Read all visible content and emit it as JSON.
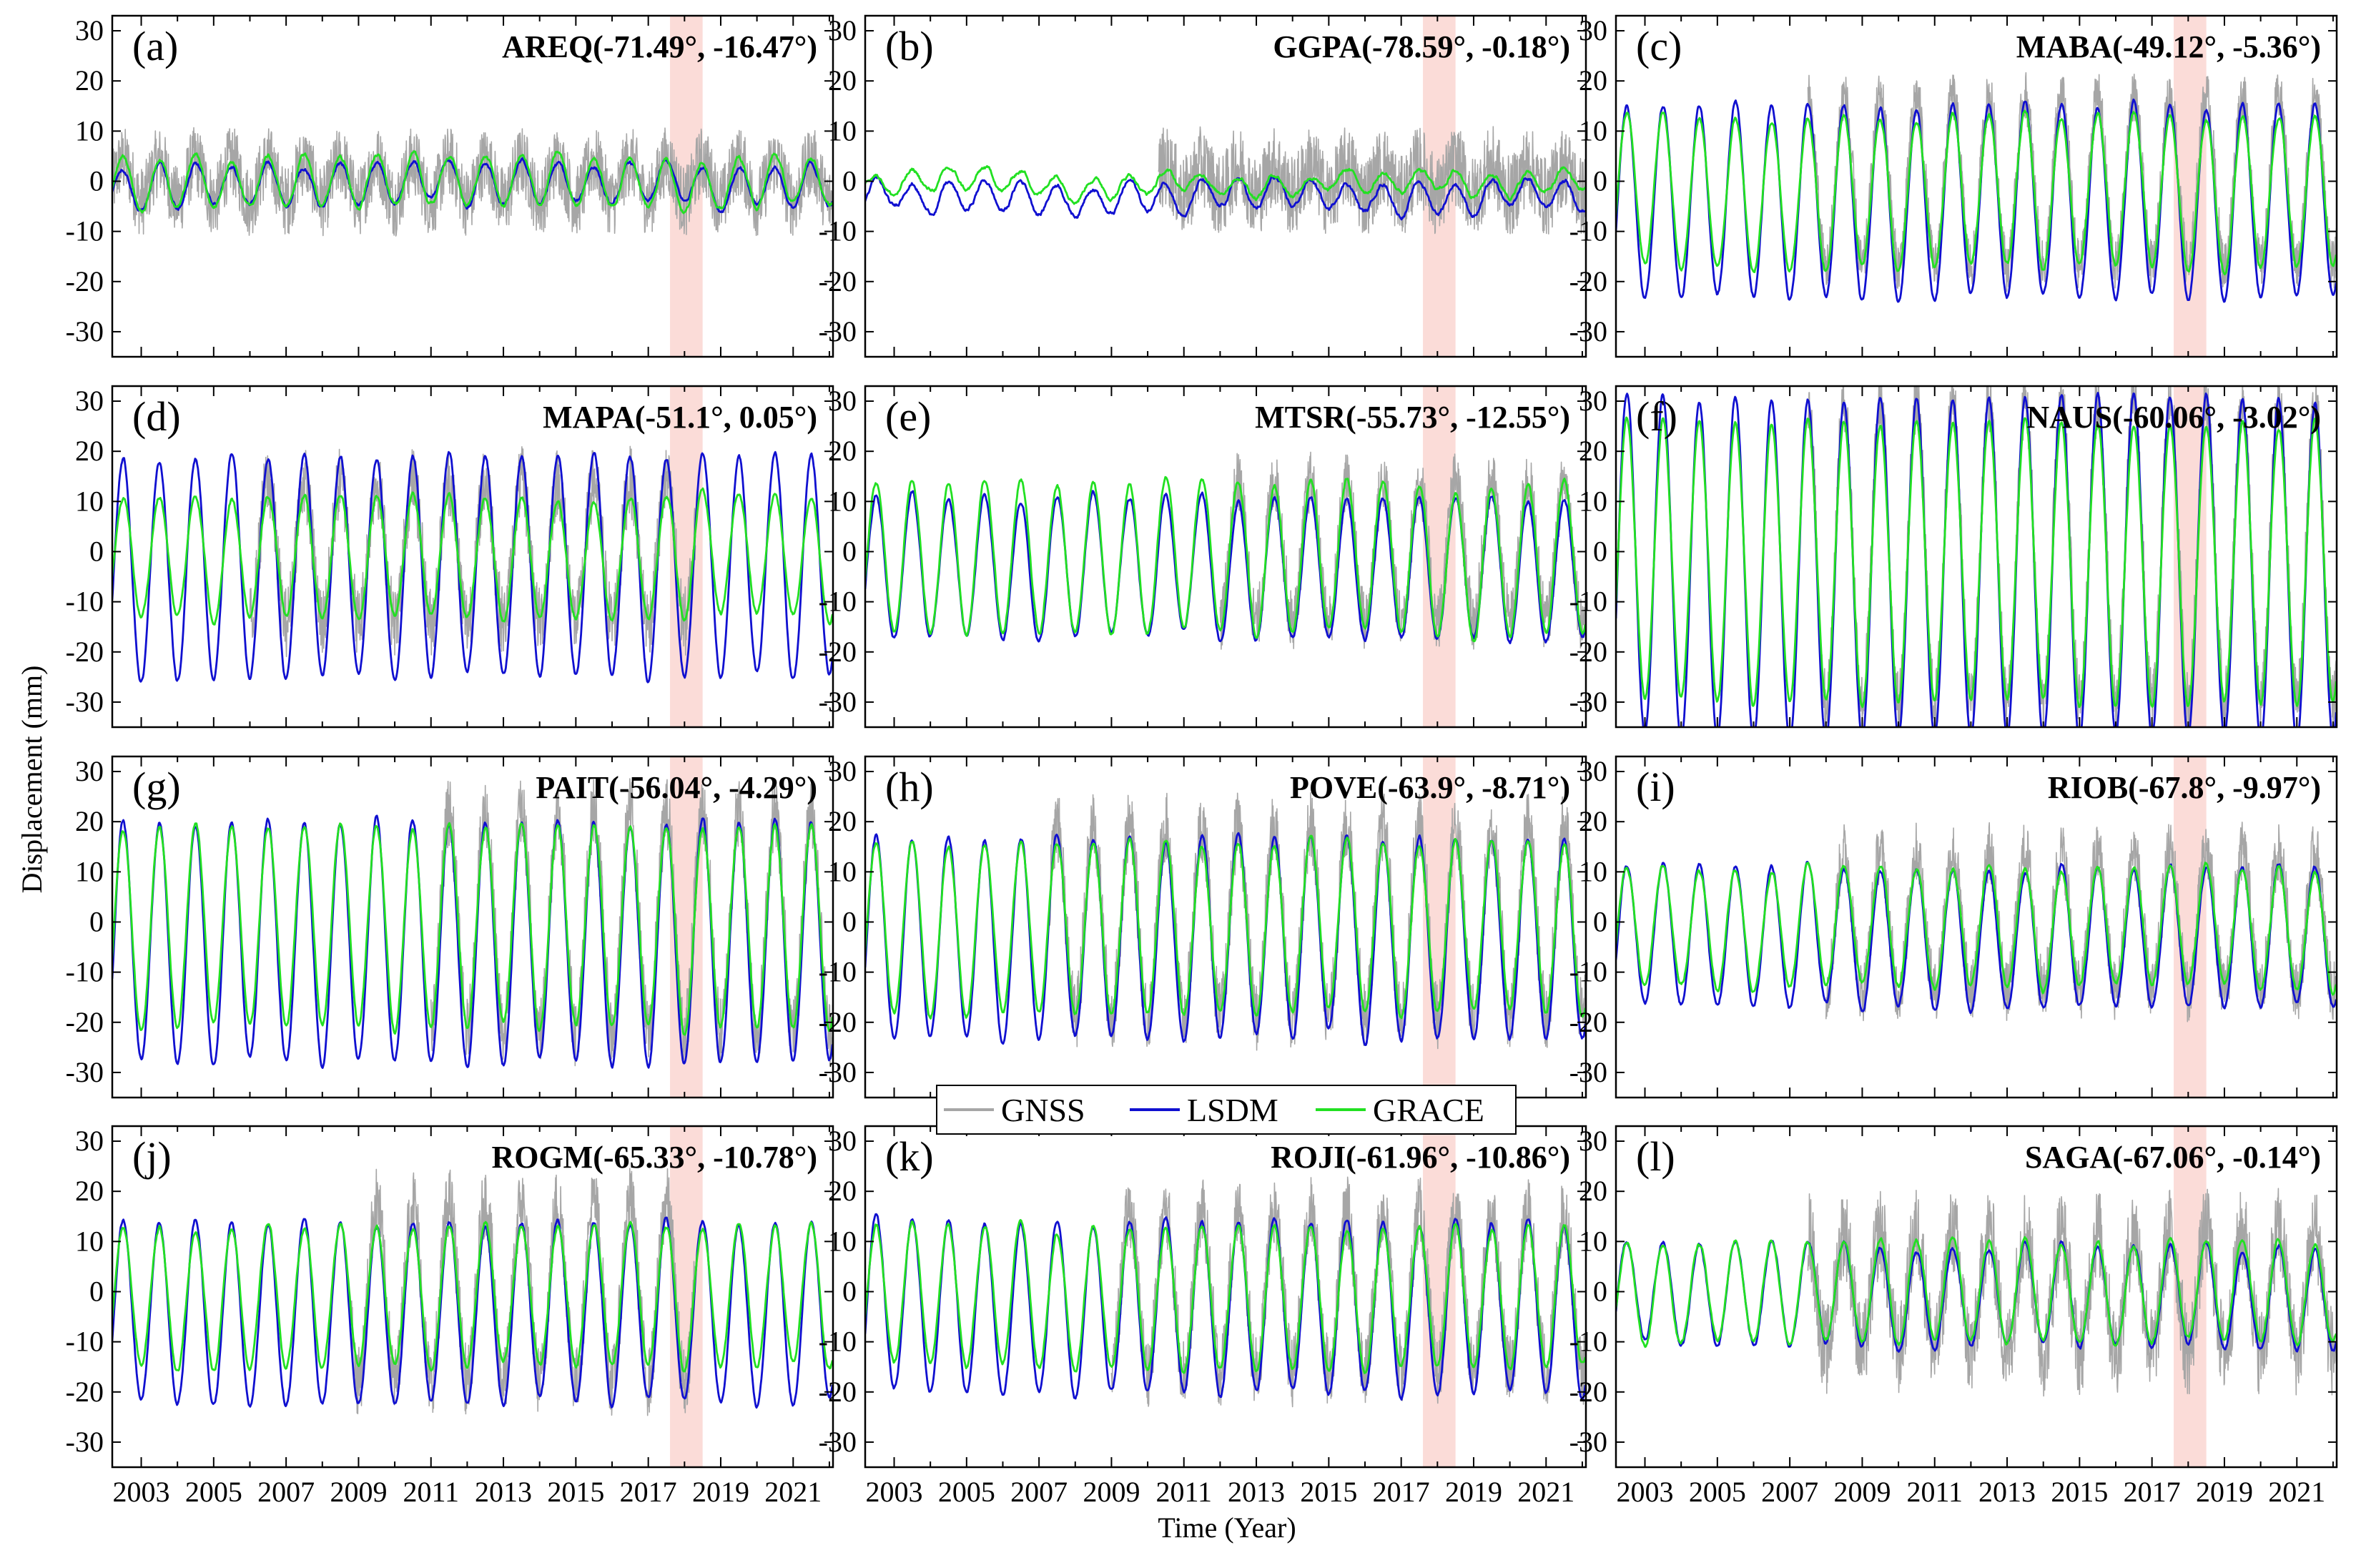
{
  "figure": {
    "ylabel": "Displacement (mm)",
    "xlabel": "Time (Year)",
    "legend": {
      "position": "center",
      "entries": [
        {
          "name": "GNSS",
          "color": "#a6a6a6"
        },
        {
          "name": "LSDM",
          "color": "#1010d0"
        },
        {
          "name": "GRACE",
          "color": "#22e022"
        }
      ]
    },
    "highlight": {
      "start": 2017.6,
      "end": 2018.5,
      "color": "#fbdcd8"
    }
  },
  "chart_data": [
    {
      "type": "line",
      "panel": "(a)",
      "station": "AREQ(-71.49°, -16.47°)",
      "xlim": [
        2002.2,
        2022.1
      ],
      "ylim": [
        -35,
        33
      ],
      "yticks": [
        30,
        20,
        10,
        0,
        -10,
        -20,
        -30
      ],
      "xticks": [
        2003,
        2005,
        2007,
        2009,
        2011,
        2013,
        2015,
        2017,
        2019,
        2021
      ],
      "series": [
        {
          "name": "GNSS",
          "amplitude": 4,
          "noise": 7,
          "start": 2002.2,
          "end": 2022.1
        },
        {
          "name": "LSDM",
          "amplitude": 4,
          "offset": -1
        },
        {
          "name": "GRACE",
          "amplitude": 5,
          "offset": 0
        }
      ]
    },
    {
      "type": "line",
      "panel": "(b)",
      "station": "GGPA(-78.59°, -0.18°)",
      "xlim": [
        2002.2,
        2022.1
      ],
      "ylim": [
        -35,
        33
      ],
      "yticks": [
        30,
        20,
        10,
        0,
        -10,
        -20,
        -30
      ],
      "xticks": [
        2003,
        2005,
        2007,
        2009,
        2011,
        2013,
        2015,
        2017,
        2019,
        2021
      ],
      "series": [
        {
          "name": "GNSS",
          "amplitude": 3,
          "noise": 8,
          "start": 2010.3,
          "end": 2022.1
        },
        {
          "name": "LSDM",
          "amplitude": 3,
          "offset": -3
        },
        {
          "name": "GRACE",
          "amplitude": 2,
          "offset": 0
        }
      ]
    },
    {
      "type": "line",
      "panel": "(c)",
      "station": "MABA(-49.12°, -5.36°)",
      "xlim": [
        2002.2,
        2022.1
      ],
      "ylim": [
        -35,
        33
      ],
      "yticks": [
        30,
        20,
        10,
        0,
        -10,
        -20,
        -30
      ],
      "xticks": [
        2003,
        2005,
        2007,
        2009,
        2011,
        2013,
        2015,
        2017,
        2019,
        2021
      ],
      "series": [
        {
          "name": "GNSS",
          "amplitude": 17,
          "noise": 5,
          "start": 2007.5,
          "end": 2022.1
        },
        {
          "name": "LSDM",
          "amplitude": 19,
          "offset": -4
        },
        {
          "name": "GRACE",
          "amplitude": 15,
          "offset": -2
        }
      ]
    },
    {
      "type": "line",
      "panel": "(d)",
      "station": "MAPA(-51.1°, 0.05°)",
      "xlim": [
        2002.2,
        2022.1
      ],
      "ylim": [
        -35,
        33
      ],
      "yticks": [
        30,
        20,
        10,
        0,
        -10,
        -20,
        -30
      ],
      "xticks": [
        2003,
        2005,
        2007,
        2009,
        2011,
        2013,
        2015,
        2017,
        2019,
        2021
      ],
      "series": [
        {
          "name": "GNSS",
          "amplitude": 14,
          "noise": 7,
          "start": 2006.0,
          "end": 2018.3
        },
        {
          "name": "LSDM",
          "amplitude": 22,
          "offset": -3
        },
        {
          "name": "GRACE",
          "amplitude": 12,
          "offset": -1
        }
      ]
    },
    {
      "type": "line",
      "panel": "(e)",
      "station": "MTSR(-55.73°, -12.55°)",
      "xlim": [
        2002.2,
        2022.1
      ],
      "ylim": [
        -35,
        33
      ],
      "yticks": [
        30,
        20,
        10,
        0,
        -10,
        -20,
        -30
      ],
      "xticks": [
        2003,
        2005,
        2007,
        2009,
        2011,
        2013,
        2015,
        2017,
        2019,
        2021
      ],
      "series": [
        {
          "name": "GNSS",
          "amplitude": 14,
          "noise": 6,
          "start": 2012.0,
          "end": 2022.1
        },
        {
          "name": "LSDM",
          "amplitude": 14,
          "offset": -3
        },
        {
          "name": "GRACE",
          "amplitude": 15,
          "offset": -1
        }
      ]
    },
    {
      "type": "line",
      "panel": "(f)",
      "station": "NAUS(-60.06°, -3.02°)",
      "xlim": [
        2002.2,
        2022.1
      ],
      "ylim": [
        -35,
        33
      ],
      "yticks": [
        30,
        20,
        10,
        0,
        -10,
        -20,
        -30
      ],
      "xticks": [
        2003,
        2005,
        2007,
        2009,
        2011,
        2013,
        2015,
        2017,
        2019,
        2021
      ],
      "series": [
        {
          "name": "GNSS",
          "amplitude": 30,
          "noise": 6,
          "start": 2007.5,
          "end": 2022.1
        },
        {
          "name": "LSDM",
          "amplitude": 34,
          "offset": -3
        },
        {
          "name": "GRACE",
          "amplitude": 28,
          "offset": -2
        }
      ]
    },
    {
      "type": "line",
      "panel": "(g)",
      "station": "PAIT(-56.04°, -4.29°)",
      "xlim": [
        2002.2,
        2022.1
      ],
      "ylim": [
        -35,
        33
      ],
      "yticks": [
        30,
        20,
        10,
        0,
        -10,
        -20,
        -30
      ],
      "xticks": [
        2003,
        2005,
        2007,
        2009,
        2011,
        2013,
        2015,
        2017,
        2019,
        2021
      ],
      "series": [
        {
          "name": "GNSS",
          "amplitude": 22,
          "noise": 7,
          "start": 2011.0,
          "end": 2022.1
        },
        {
          "name": "LSDM",
          "amplitude": 24,
          "offset": -4
        },
        {
          "name": "GRACE",
          "amplitude": 20,
          "offset": -1
        }
      ]
    },
    {
      "type": "line",
      "panel": "(h)",
      "station": "POVE(-63.9°, -8.71°)",
      "xlim": [
        2002.2,
        2022.1
      ],
      "ylim": [
        -35,
        33
      ],
      "yticks": [
        30,
        20,
        10,
        0,
        -10,
        -20,
        -30
      ],
      "xticks": [
        2003,
        2005,
        2007,
        2009,
        2011,
        2013,
        2015,
        2017,
        2019,
        2021
      ],
      "series": [
        {
          "name": "GNSS",
          "amplitude": 19,
          "noise": 7,
          "start": 2007.3,
          "end": 2022.1
        },
        {
          "name": "LSDM",
          "amplitude": 20,
          "offset": -3
        },
        {
          "name": "GRACE",
          "amplitude": 17,
          "offset": -1
        }
      ]
    },
    {
      "type": "line",
      "panel": "(i)",
      "station": "RIOB(-67.8°, -9.97°)",
      "xlim": [
        2002.2,
        2022.1
      ],
      "ylim": [
        -35,
        33
      ],
      "yticks": [
        30,
        20,
        10,
        0,
        -10,
        -20,
        -30
      ],
      "xticks": [
        2003,
        2005,
        2007,
        2009,
        2011,
        2013,
        2015,
        2017,
        2019,
        2021
      ],
      "series": [
        {
          "name": "GNSS",
          "amplitude": 14,
          "noise": 6,
          "start": 2008.0,
          "end": 2022.1
        },
        {
          "name": "LSDM",
          "amplitude": 14,
          "offset": -3
        },
        {
          "name": "GRACE",
          "amplitude": 12,
          "offset": -1
        }
      ]
    },
    {
      "type": "line",
      "panel": "(j)",
      "station": "ROGM(-65.33°, -10.78°)",
      "xlim": [
        2002.2,
        2022.1
      ],
      "ylim": [
        -35,
        33
      ],
      "yticks": [
        30,
        20,
        10,
        0,
        -10,
        -20,
        -30
      ],
      "xticks": [
        2003,
        2005,
        2007,
        2009,
        2011,
        2013,
        2015,
        2017,
        2019,
        2021
      ],
      "series": [
        {
          "name": "GNSS",
          "amplitude": 18,
          "noise": 7,
          "start": 2008.8,
          "end": 2018.3
        },
        {
          "name": "LSDM",
          "amplitude": 18,
          "offset": -4
        },
        {
          "name": "GRACE",
          "amplitude": 14,
          "offset": -1
        }
      ]
    },
    {
      "type": "line",
      "panel": "(k)",
      "station": "ROJI(-61.96°, -10.86°)",
      "xlim": [
        2002.2,
        2022.1
      ],
      "ylim": [
        -35,
        33
      ],
      "yticks": [
        30,
        20,
        10,
        0,
        -10,
        -20,
        -30
      ],
      "xticks": [
        2003,
        2005,
        2007,
        2009,
        2011,
        2013,
        2015,
        2017,
        2019,
        2021
      ],
      "series": [
        {
          "name": "GNSS",
          "amplitude": 16,
          "noise": 7,
          "start": 2009.0,
          "end": 2022.1
        },
        {
          "name": "LSDM",
          "amplitude": 17,
          "offset": -3
        },
        {
          "name": "GRACE",
          "amplitude": 14,
          "offset": -1
        }
      ]
    },
    {
      "type": "line",
      "panel": "(l)",
      "station": "SAGA(-67.06°, -0.14°)",
      "xlim": [
        2002.2,
        2022.1
      ],
      "ylim": [
        -35,
        33
      ],
      "yticks": [
        30,
        20,
        10,
        0,
        -10,
        -20,
        -30
      ],
      "xticks": [
        2003,
        2005,
        2007,
        2009,
        2011,
        2013,
        2015,
        2017,
        2019,
        2021
      ],
      "series": [
        {
          "name": "GNSS",
          "amplitude": 12,
          "noise": 9,
          "start": 2007.5,
          "end": 2022.1
        },
        {
          "name": "LSDM",
          "amplitude": 10,
          "offset": -1
        },
        {
          "name": "GRACE",
          "amplitude": 10,
          "offset": 0
        }
      ]
    }
  ]
}
